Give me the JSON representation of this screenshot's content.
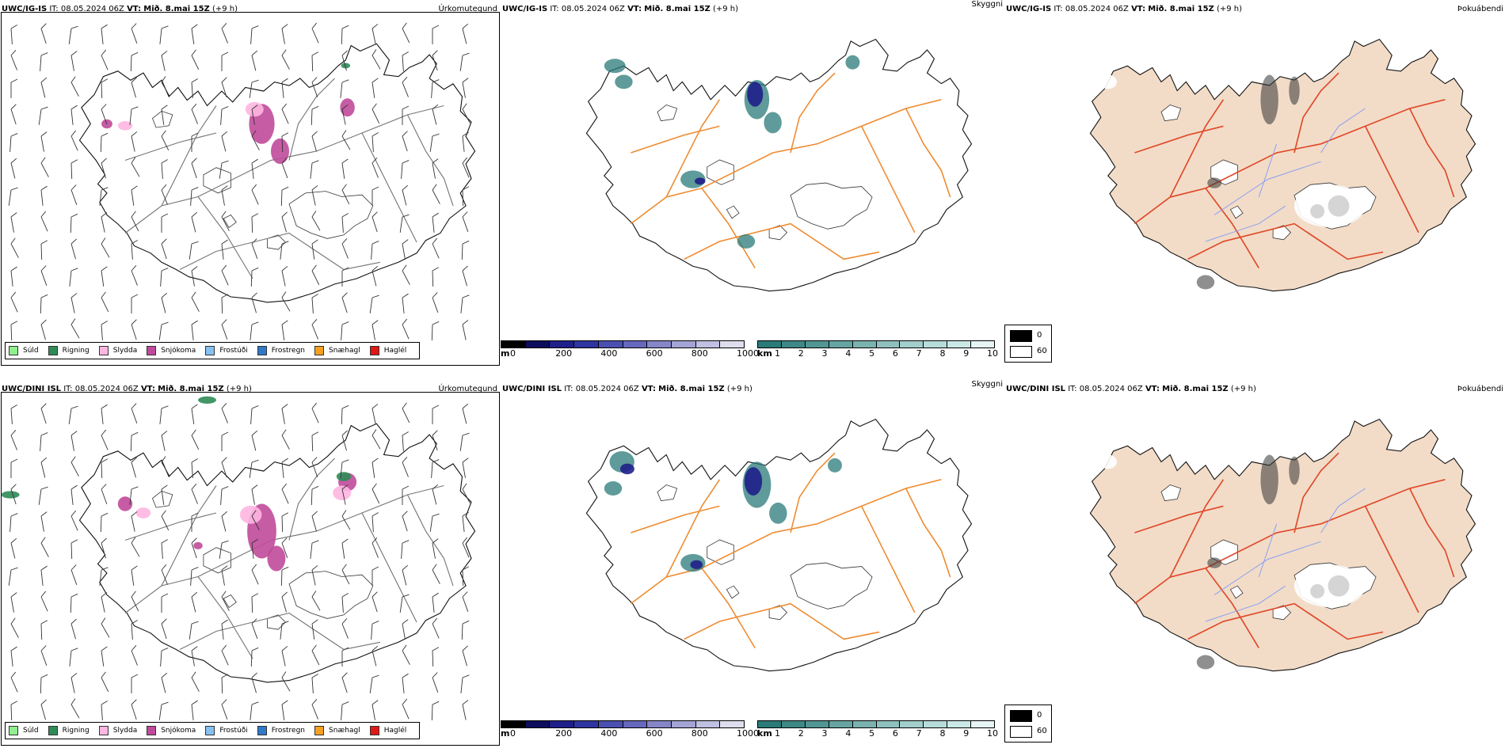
{
  "panels": [
    {
      "model": "UWC/IG-IS",
      "it_label": "IT:",
      "it_value": "08.05.2024 06Z",
      "vt_label": "VT:",
      "vt_value": "Mið. 8.mai 15Z",
      "lead": "(+9 h)",
      "precip_title": "Úrkomutegund",
      "visibility_title": "Skyggni",
      "fog_title": "Þokuábendi"
    },
    {
      "model": "UWC/DINI ISL",
      "it_label": "IT:",
      "it_value": "08.05.2024 06Z",
      "vt_label": "VT:",
      "vt_value": "Mið. 8.mai 15Z",
      "lead": "(+9 h)",
      "precip_title": "Úrkomutegund",
      "visibility_title": "Skyggni",
      "fog_title": "Þokuábendi"
    }
  ],
  "precip_legend": [
    {
      "label": "Súld",
      "color": "#90ee90"
    },
    {
      "label": "Rigning",
      "color": "#2e8b57"
    },
    {
      "label": "Slydda",
      "color": "#ffb6e1"
    },
    {
      "label": "Snjókoma",
      "color": "#c04a9a"
    },
    {
      "label": "Frostúði",
      "color": "#87c1f0"
    },
    {
      "label": "Frostregn",
      "color": "#2f79c8"
    },
    {
      "label": "Snæhagl",
      "color": "#f5a020"
    },
    {
      "label": "Haglél",
      "color": "#e01818"
    }
  ],
  "height_bar": {
    "unit": "m",
    "ticks": [
      "0",
      "200",
      "400",
      "600",
      "800",
      "1000"
    ],
    "colors": [
      "#000000",
      "#0d0d5e",
      "#1f1f8a",
      "#2f35a0",
      "#4a4fb0",
      "#6668bd",
      "#8585c8",
      "#a3a3d5",
      "#c0c0e2",
      "#dddded"
    ]
  },
  "vis_bar": {
    "unit": "km",
    "ticks": [
      "1",
      "2",
      "3",
      "4",
      "5",
      "6",
      "7",
      "8",
      "9",
      "10"
    ],
    "colors": [
      "#2a7a78",
      "#3e8886",
      "#529694",
      "#66a4a2",
      "#7ab2b0",
      "#8ec0be",
      "#a2cecc",
      "#b6dcda",
      "#cae8e6",
      "#e6f4f3"
    ]
  },
  "fog_legend": [
    {
      "label": "0",
      "color": "#000000"
    },
    {
      "label": "60",
      "color": "#ffffff"
    }
  ]
}
